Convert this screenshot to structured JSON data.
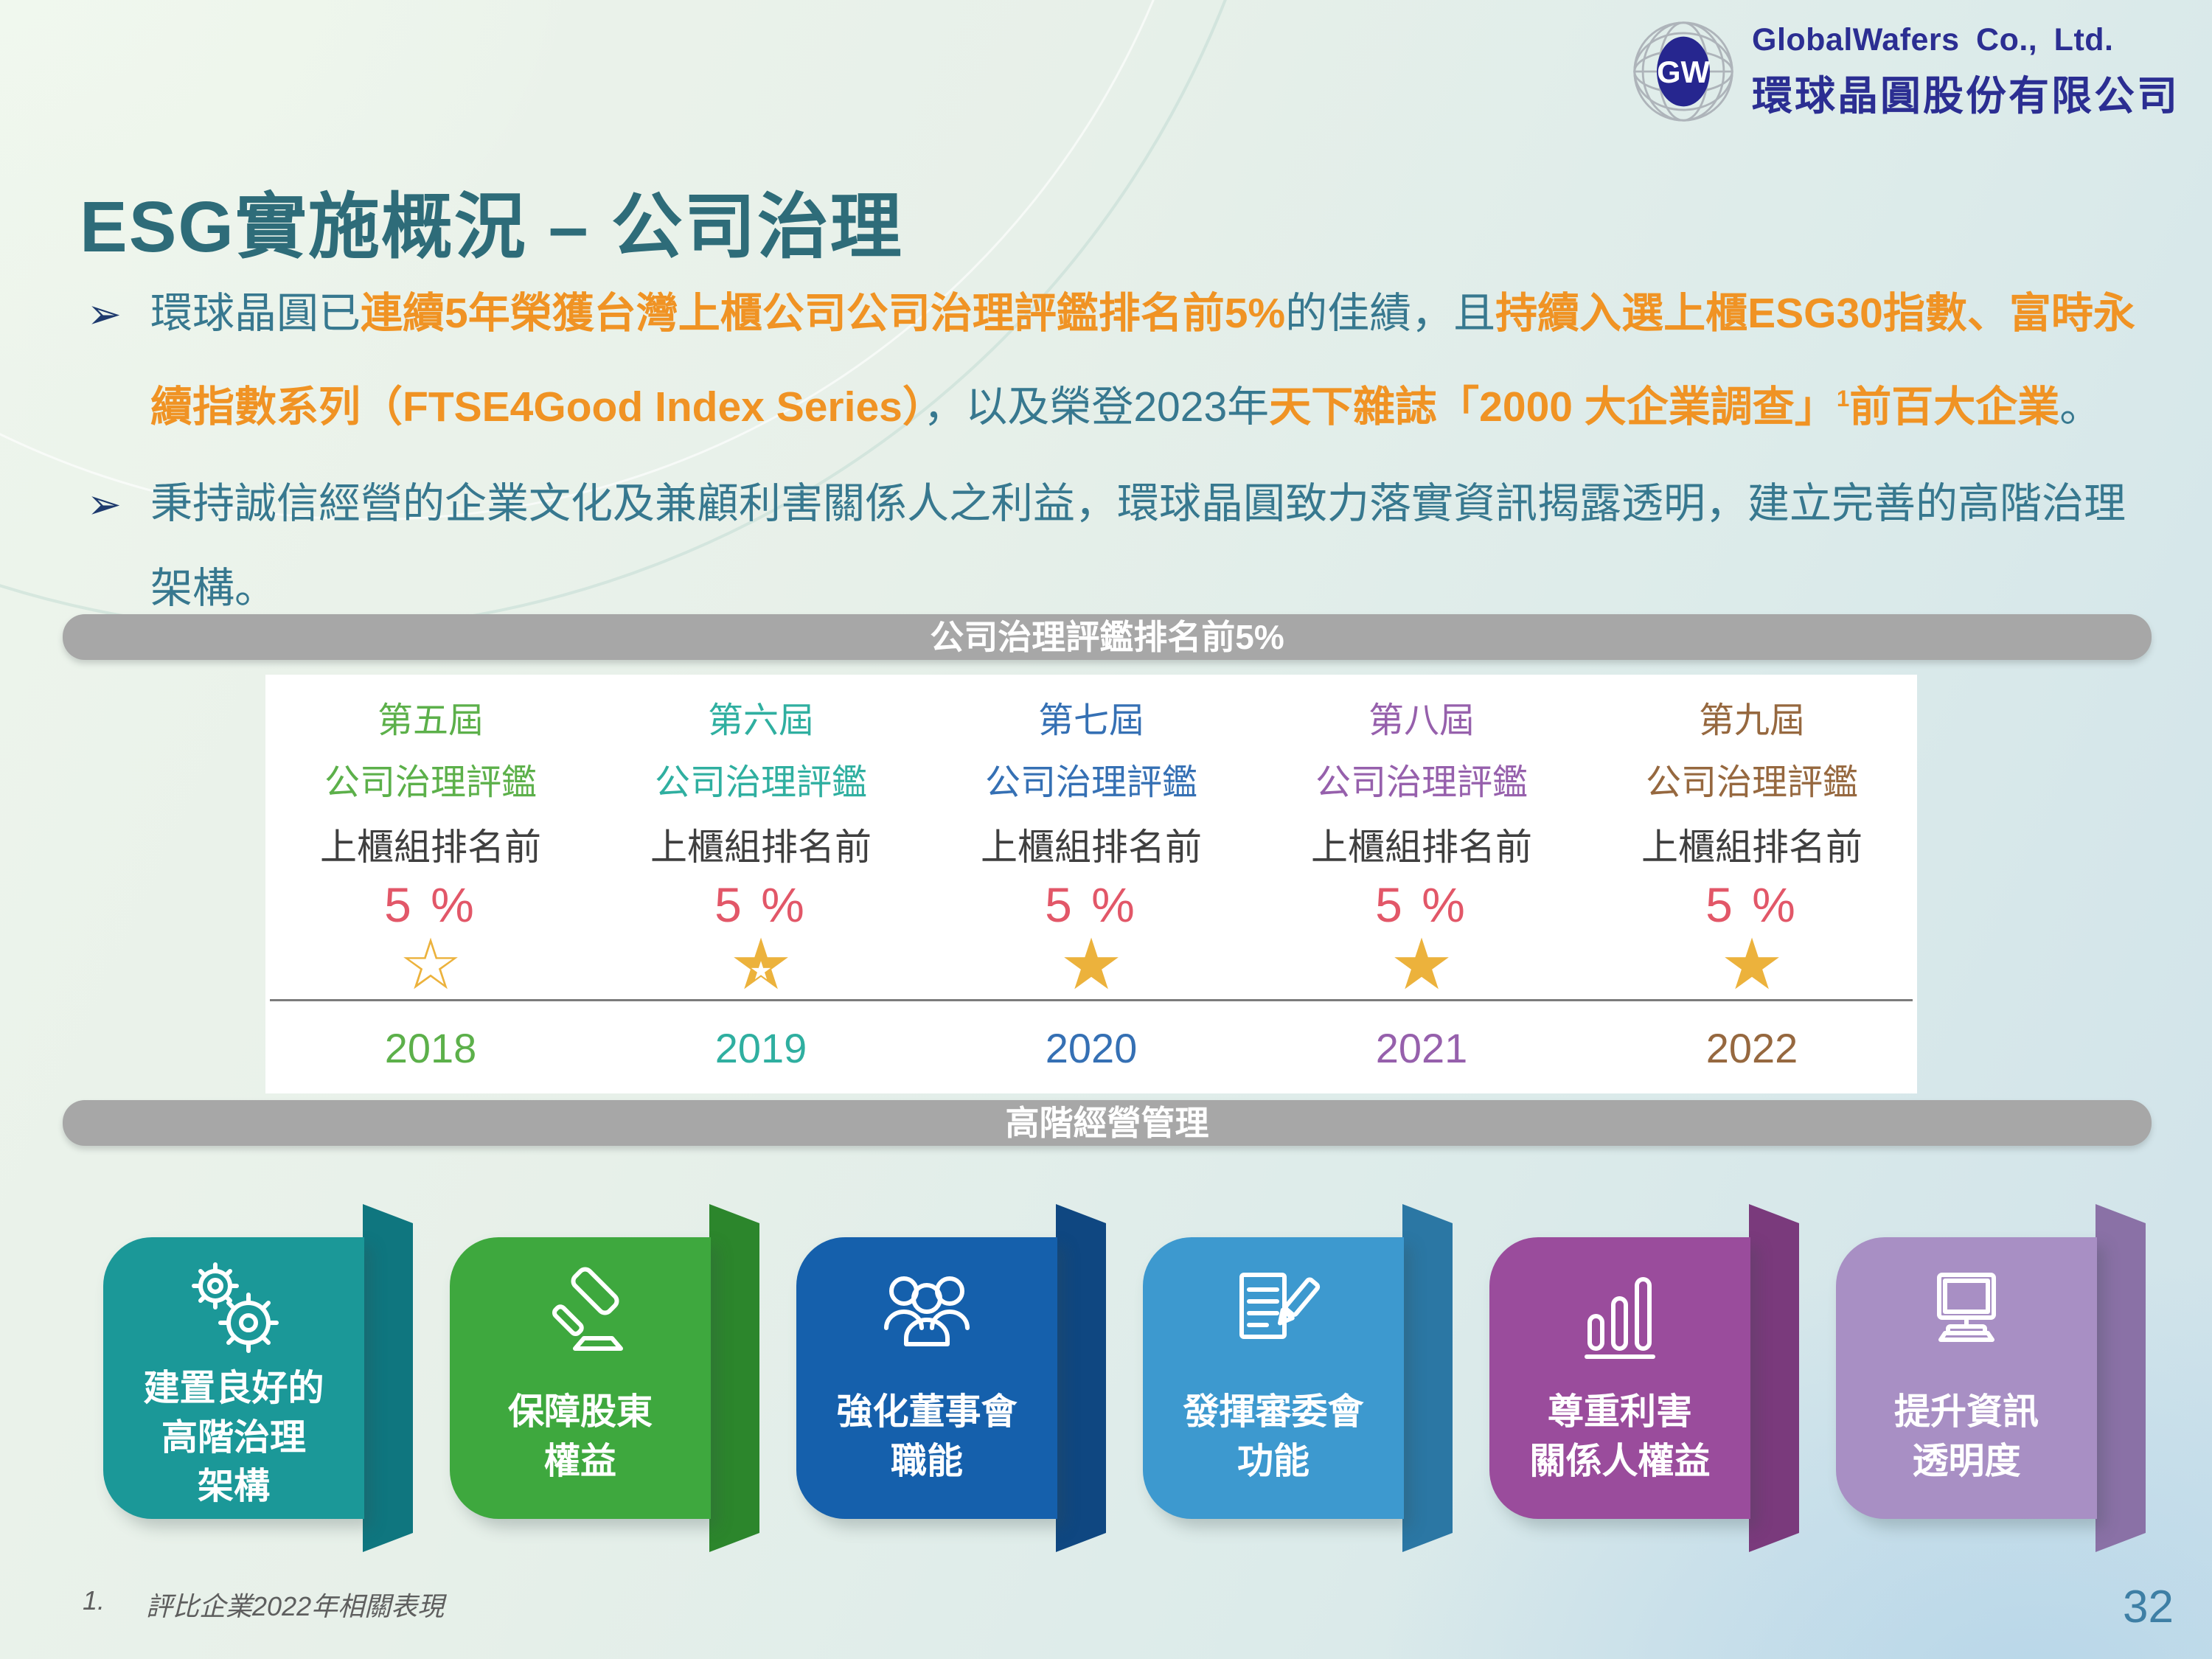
{
  "page_number": "32",
  "logo": {
    "monogram": "GW",
    "company_en": "GlobalWafers Co., Ltd.",
    "company_zh": "環球晶圓股份有限公司"
  },
  "title": "ESG實施概況 – 公司治理",
  "bullets": [
    {
      "segments": [
        {
          "text": "環球晶圓已",
          "style": "normal"
        },
        {
          "text": "連續5年榮獲台灣上櫃公司公司治理評鑑排名前5%",
          "style": "highlight"
        },
        {
          "text": "的佳績，且",
          "style": "normal"
        },
        {
          "text": "持續入選上櫃ESG30指數、富時永續指數系列（FTSE4Good Index Series）",
          "style": "highlight"
        },
        {
          "text": "，以及榮登2023年",
          "style": "normal"
        },
        {
          "text": "天下雜誌「2000 大企業調查」",
          "style": "highlight"
        },
        {
          "text": "1",
          "style": "highlight",
          "sup": true
        },
        {
          "text": "前百大企業",
          "style": "highlight"
        },
        {
          "text": "。",
          "style": "normal"
        }
      ]
    },
    {
      "segments": [
        {
          "text": "秉持誠信經營的企業文化及兼顧利害關係人之利益，環球晶圓致力落實資訊揭露透明，建立完善的高階治理架構。",
          "style": "normal"
        }
      ]
    }
  ],
  "banners": {
    "governance": "公司治理評鑑排名前5%",
    "management": "高階經營管理"
  },
  "evaluation": {
    "rank_color": "#3F3F3F",
    "percent_color": "#E25768",
    "star_color": "#ECB23C",
    "star_glyphs": {
      "outline": "☆",
      "filled": "★"
    },
    "columns": [
      {
        "period": "第五屆",
        "award": "公司治理評鑑",
        "rank": "上櫃組排名前",
        "percent": "5 %",
        "year": "2018",
        "color": "#5CB04A",
        "star": "outline"
      },
      {
        "period": "第六屆",
        "award": "公司治理評鑑",
        "rank": "上櫃組排名前",
        "percent": "5 %",
        "year": "2019",
        "color": "#2FAFA0",
        "star": "half"
      },
      {
        "period": "第七屆",
        "award": "公司治理評鑑",
        "rank": "上櫃組排名前",
        "percent": "5 %",
        "year": "2020",
        "color": "#3570B4",
        "star": "filled"
      },
      {
        "period": "第八屆",
        "award": "公司治理評鑑",
        "rank": "上櫃組排名前",
        "percent": "5 %",
        "year": "2021",
        "color": "#9660AC",
        "star": "filled"
      },
      {
        "period": "第九屆",
        "award": "公司治理評鑑",
        "rank": "上櫃組排名前",
        "percent": "5 %",
        "year": "2022",
        "color": "#96683F",
        "star": "filled"
      }
    ]
  },
  "ribbons": [
    {
      "icon": "gears-icon",
      "lines": [
        "建置良好的",
        "高階治理",
        "架構"
      ],
      "color": "#1B9898",
      "fold_color": "#0F767F"
    },
    {
      "icon": "gavel-icon",
      "lines": [
        "保障股東",
        "權益"
      ],
      "color": "#3EA83E",
      "fold_color": "#2C862C"
    },
    {
      "icon": "board-people-icon",
      "lines": [
        "強化董事會",
        "職能"
      ],
      "color": "#1560AC",
      "fold_color": "#0F4781"
    },
    {
      "icon": "audit-document-icon",
      "lines": [
        "發揮審委會",
        "功能"
      ],
      "color": "#3D99CF",
      "fold_color": "#2B77A4"
    },
    {
      "icon": "bar-chart-icon",
      "lines": [
        "尊重利害",
        "關係人權益"
      ],
      "color": "#9A4C9C",
      "fold_color": "#7A3A7C"
    },
    {
      "icon": "monitor-icon",
      "lines": [
        "提升資訊",
        "透明度"
      ],
      "color": "#A88FC4",
      "fold_color": "#8A71A6"
    }
  ],
  "footnote": {
    "index": "1.",
    "text": "評比企業2022年相關表現"
  },
  "colors": {
    "title": "#2E6C79",
    "body_teal": "#37788F",
    "highlight_orange": "#F09324",
    "bullet_marker": "#1E3A6E",
    "banner_gray": "#A7A7A7",
    "navy": "#2B2E92",
    "page_number": "#3E7FA5"
  }
}
